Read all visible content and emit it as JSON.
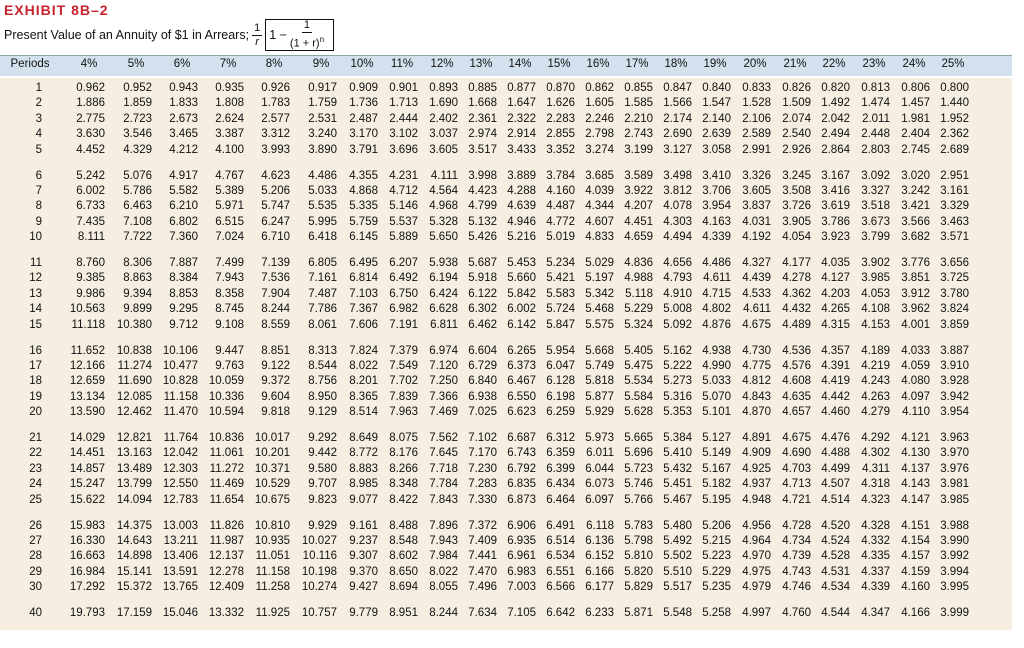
{
  "header": {
    "title": "EXHIBIT 8B–2",
    "subtitle": "Present Value of an Annuity of $1 in Arrears;",
    "formula": {
      "numerator": "1",
      "denominator": "r",
      "minus": "1 −",
      "inner_numerator": "1",
      "inner_denominator": "(1 + r)",
      "exponent": "n"
    }
  },
  "table": {
    "columns": [
      "Periods",
      "4%",
      "5%",
      "6%",
      "7%",
      "8%",
      "9%",
      "10%",
      "11%",
      "12%",
      "13%",
      "14%",
      "15%",
      "16%",
      "17%",
      "18%",
      "19%",
      "20%",
      "21%",
      "22%",
      "23%",
      "24%",
      "25%"
    ],
    "rows": [
      [
        "1",
        "0.962",
        "0.952",
        "0.943",
        "0.935",
        "0.926",
        "0.917",
        "0.909",
        "0.901",
        "0.893",
        "0.885",
        "0.877",
        "0.870",
        "0.862",
        "0.855",
        "0.847",
        "0.840",
        "0.833",
        "0.826",
        "0.820",
        "0.813",
        "0.806",
        "0.800"
      ],
      [
        "2",
        "1.886",
        "1.859",
        "1.833",
        "1.808",
        "1.783",
        "1.759",
        "1.736",
        "1.713",
        "1.690",
        "1.668",
        "1.647",
        "1.626",
        "1.605",
        "1.585",
        "1.566",
        "1.547",
        "1.528",
        "1.509",
        "1.492",
        "1.474",
        "1.457",
        "1.440"
      ],
      [
        "3",
        "2.775",
        "2.723",
        "2.673",
        "2.624",
        "2.577",
        "2.531",
        "2.487",
        "2.444",
        "2.402",
        "2.361",
        "2.322",
        "2.283",
        "2.246",
        "2.210",
        "2.174",
        "2.140",
        "2.106",
        "2.074",
        "2.042",
        "2.011",
        "1.981",
        "1.952"
      ],
      [
        "4",
        "3.630",
        "3.546",
        "3.465",
        "3.387",
        "3.312",
        "3.240",
        "3.170",
        "3.102",
        "3.037",
        "2.974",
        "2.914",
        "2.855",
        "2.798",
        "2.743",
        "2.690",
        "2.639",
        "2.589",
        "2.540",
        "2.494",
        "2.448",
        "2.404",
        "2.362"
      ],
      [
        "5",
        "4.452",
        "4.329",
        "4.212",
        "4.100",
        "3.993",
        "3.890",
        "3.791",
        "3.696",
        "3.605",
        "3.517",
        "3.433",
        "3.352",
        "3.274",
        "3.199",
        "3.127",
        "3.058",
        "2.991",
        "2.926",
        "2.864",
        "2.803",
        "2.745",
        "2.689"
      ],
      [
        "6",
        "5.242",
        "5.076",
        "4.917",
        "4.767",
        "4.623",
        "4.486",
        "4.355",
        "4.231",
        "4.111",
        "3.998",
        "3.889",
        "3.784",
        "3.685",
        "3.589",
        "3.498",
        "3.410",
        "3.326",
        "3.245",
        "3.167",
        "3.092",
        "3.020",
        "2.951"
      ],
      [
        "7",
        "6.002",
        "5.786",
        "5.582",
        "5.389",
        "5.206",
        "5.033",
        "4.868",
        "4.712",
        "4.564",
        "4.423",
        "4.288",
        "4.160",
        "4.039",
        "3.922",
        "3.812",
        "3.706",
        "3.605",
        "3.508",
        "3.416",
        "3.327",
        "3.242",
        "3.161"
      ],
      [
        "8",
        "6.733",
        "6.463",
        "6.210",
        "5.971",
        "5.747",
        "5.535",
        "5.335",
        "5.146",
        "4.968",
        "4.799",
        "4.639",
        "4.487",
        "4.344",
        "4.207",
        "4.078",
        "3.954",
        "3.837",
        "3.726",
        "3.619",
        "3.518",
        "3.421",
        "3.329"
      ],
      [
        "9",
        "7.435",
        "7.108",
        "6.802",
        "6.515",
        "6.247",
        "5.995",
        "5.759",
        "5.537",
        "5.328",
        "5.132",
        "4.946",
        "4.772",
        "4.607",
        "4.451",
        "4.303",
        "4.163",
        "4.031",
        "3.905",
        "3.786",
        "3.673",
        "3.566",
        "3.463"
      ],
      [
        "10",
        "8.111",
        "7.722",
        "7.360",
        "7.024",
        "6.710",
        "6.418",
        "6.145",
        "5.889",
        "5.650",
        "5.426",
        "5.216",
        "5.019",
        "4.833",
        "4.659",
        "4.494",
        "4.339",
        "4.192",
        "4.054",
        "3.923",
        "3.799",
        "3.682",
        "3.571"
      ],
      [
        "11",
        "8.760",
        "8.306",
        "7.887",
        "7.499",
        "7.139",
        "6.805",
        "6.495",
        "6.207",
        "5.938",
        "5.687",
        "5.453",
        "5.234",
        "5.029",
        "4.836",
        "4.656",
        "4.486",
        "4.327",
        "4.177",
        "4.035",
        "3.902",
        "3.776",
        "3.656"
      ],
      [
        "12",
        "9.385",
        "8.863",
        "8.384",
        "7.943",
        "7.536",
        "7.161",
        "6.814",
        "6.492",
        "6.194",
        "5.918",
        "5.660",
        "5.421",
        "5.197",
        "4.988",
        "4.793",
        "4.611",
        "4.439",
        "4.278",
        "4.127",
        "3.985",
        "3.851",
        "3.725"
      ],
      [
        "13",
        "9.986",
        "9.394",
        "8.853",
        "8.358",
        "7.904",
        "7.487",
        "7.103",
        "6.750",
        "6.424",
        "6.122",
        "5.842",
        "5.583",
        "5.342",
        "5.118",
        "4.910",
        "4.715",
        "4.533",
        "4.362",
        "4.203",
        "4.053",
        "3.912",
        "3.780"
      ],
      [
        "14",
        "10.563",
        "9.899",
        "9.295",
        "8.745",
        "8.244",
        "7.786",
        "7.367",
        "6.982",
        "6.628",
        "6.302",
        "6.002",
        "5.724",
        "5.468",
        "5.229",
        "5.008",
        "4.802",
        "4.611",
        "4.432",
        "4.265",
        "4.108",
        "3.962",
        "3.824"
      ],
      [
        "15",
        "11.118",
        "10.380",
        "9.712",
        "9.108",
        "8.559",
        "8.061",
        "7.606",
        "7.191",
        "6.811",
        "6.462",
        "6.142",
        "5.847",
        "5.575",
        "5.324",
        "5.092",
        "4.876",
        "4.675",
        "4.489",
        "4.315",
        "4.153",
        "4.001",
        "3.859"
      ],
      [
        "16",
        "11.652",
        "10.838",
        "10.106",
        "9.447",
        "8.851",
        "8.313",
        "7.824",
        "7.379",
        "6.974",
        "6.604",
        "6.265",
        "5.954",
        "5.668",
        "5.405",
        "5.162",
        "4.938",
        "4.730",
        "4.536",
        "4.357",
        "4.189",
        "4.033",
        "3.887"
      ],
      [
        "17",
        "12.166",
        "11.274",
        "10.477",
        "9.763",
        "9.122",
        "8.544",
        "8.022",
        "7.549",
        "7.120",
        "6.729",
        "6.373",
        "6.047",
        "5.749",
        "5.475",
        "5.222",
        "4.990",
        "4.775",
        "4.576",
        "4.391",
        "4.219",
        "4.059",
        "3.910"
      ],
      [
        "18",
        "12.659",
        "11.690",
        "10.828",
        "10.059",
        "9.372",
        "8.756",
        "8.201",
        "7.702",
        "7.250",
        "6.840",
        "6.467",
        "6.128",
        "5.818",
        "5.534",
        "5.273",
        "5.033",
        "4.812",
        "4.608",
        "4.419",
        "4.243",
        "4.080",
        "3.928"
      ],
      [
        "19",
        "13.134",
        "12.085",
        "11.158",
        "10.336",
        "9.604",
        "8.950",
        "8.365",
        "7.839",
        "7.366",
        "6.938",
        "6.550",
        "6.198",
        "5.877",
        "5.584",
        "5.316",
        "5.070",
        "4.843",
        "4.635",
        "4.442",
        "4.263",
        "4.097",
        "3.942"
      ],
      [
        "20",
        "13.590",
        "12.462",
        "11.470",
        "10.594",
        "9.818",
        "9.129",
        "8.514",
        "7.963",
        "7.469",
        "7.025",
        "6.623",
        "6.259",
        "5.929",
        "5.628",
        "5.353",
        "5.101",
        "4.870",
        "4.657",
        "4.460",
        "4.279",
        "4.110",
        "3.954"
      ],
      [
        "21",
        "14.029",
        "12.821",
        "11.764",
        "10.836",
        "10.017",
        "9.292",
        "8.649",
        "8.075",
        "7.562",
        "7.102",
        "6.687",
        "6.312",
        "5.973",
        "5.665",
        "5.384",
        "5.127",
        "4.891",
        "4.675",
        "4.476",
        "4.292",
        "4.121",
        "3.963"
      ],
      [
        "22",
        "14.451",
        "13.163",
        "12.042",
        "11.061",
        "10.201",
        "9.442",
        "8.772",
        "8.176",
        "7.645",
        "7.170",
        "6.743",
        "6.359",
        "6.011",
        "5.696",
        "5.410",
        "5.149",
        "4.909",
        "4.690",
        "4.488",
        "4.302",
        "4.130",
        "3.970"
      ],
      [
        "23",
        "14.857",
        "13.489",
        "12.303",
        "11.272",
        "10.371",
        "9.580",
        "8.883",
        "8.266",
        "7.718",
        "7.230",
        "6.792",
        "6.399",
        "6.044",
        "5.723",
        "5.432",
        "5.167",
        "4.925",
        "4.703",
        "4.499",
        "4.311",
        "4.137",
        "3.976"
      ],
      [
        "24",
        "15.247",
        "13.799",
        "12.550",
        "11.469",
        "10.529",
        "9.707",
        "8.985",
        "8.348",
        "7.784",
        "7.283",
        "6.835",
        "6.434",
        "6.073",
        "5.746",
        "5.451",
        "5.182",
        "4.937",
        "4.713",
        "4.507",
        "4.318",
        "4.143",
        "3.981"
      ],
      [
        "25",
        "15.622",
        "14.094",
        "12.783",
        "11.654",
        "10.675",
        "9.823",
        "9.077",
        "8.422",
        "7.843",
        "7.330",
        "6.873",
        "6.464",
        "6.097",
        "5.766",
        "5.467",
        "5.195",
        "4.948",
        "4.721",
        "4.514",
        "4.323",
        "4.147",
        "3.985"
      ],
      [
        "26",
        "15.983",
        "14.375",
        "13.003",
        "11.826",
        "10.810",
        "9.929",
        "9.161",
        "8.488",
        "7.896",
        "7.372",
        "6.906",
        "6.491",
        "6.118",
        "5.783",
        "5.480",
        "5.206",
        "4.956",
        "4.728",
        "4.520",
        "4.328",
        "4.151",
        "3.988"
      ],
      [
        "27",
        "16.330",
        "14.643",
        "13.211",
        "11.987",
        "10.935",
        "10.027",
        "9.237",
        "8.548",
        "7.943",
        "7.409",
        "6.935",
        "6.514",
        "6.136",
        "5.798",
        "5.492",
        "5.215",
        "4.964",
        "4.734",
        "4.524",
        "4.332",
        "4.154",
        "3.990"
      ],
      [
        "28",
        "16.663",
        "14.898",
        "13.406",
        "12.137",
        "11.051",
        "10.116",
        "9.307",
        "8.602",
        "7.984",
        "7.441",
        "6.961",
        "6.534",
        "6.152",
        "5.810",
        "5.502",
        "5.223",
        "4.970",
        "4.739",
        "4.528",
        "4.335",
        "4.157",
        "3.992"
      ],
      [
        "29",
        "16.984",
        "15.141",
        "13.591",
        "12.278",
        "11.158",
        "10.198",
        "9.370",
        "8.650",
        "8.022",
        "7.470",
        "6.983",
        "6.551",
        "6.166",
        "5.820",
        "5.510",
        "5.229",
        "4.975",
        "4.743",
        "4.531",
        "4.337",
        "4.159",
        "3.994"
      ],
      [
        "30",
        "17.292",
        "15.372",
        "13.765",
        "12.409",
        "11.258",
        "10.274",
        "9.427",
        "8.694",
        "8.055",
        "7.496",
        "7.003",
        "6.566",
        "6.177",
        "5.829",
        "5.517",
        "5.235",
        "4.979",
        "4.746",
        "4.534",
        "4.339",
        "4.160",
        "3.995"
      ],
      [
        "40",
        "19.793",
        "17.159",
        "15.046",
        "13.332",
        "11.925",
        "10.757",
        "9.779",
        "8.951",
        "8.244",
        "7.634",
        "7.105",
        "6.642",
        "6.233",
        "5.871",
        "5.548",
        "5.258",
        "4.997",
        "4.760",
        "4.544",
        "4.347",
        "4.166",
        "3.999"
      ]
    ]
  }
}
